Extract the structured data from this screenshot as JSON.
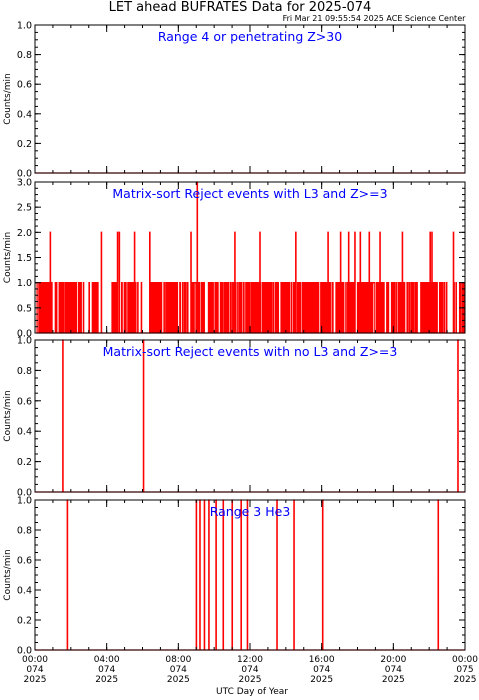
{
  "title": "LET ahead BUFRATES Data for 2025-074",
  "subtitle": "Fri Mar 21 09:55:54 2025 ACE Science Center",
  "xlabel": "UTC Day of Year",
  "colors": {
    "data": "#ff0000",
    "panel_label": "#0000ff",
    "axes": "#000000"
  },
  "chart_data": [
    {
      "type": "line",
      "label": "Range 4 or  penetrating Z>30",
      "ylabel": "Counts/min",
      "ylim": [
        0,
        1
      ],
      "yticks": [
        "0.0",
        "0.2",
        "0.4",
        "0.6",
        "0.8",
        "1.0"
      ],
      "x_hours": [
        0,
        24
      ],
      "values_note": "",
      "series": [
        {
          "values": []
        }
      ]
    },
    {
      "type": "line",
      "label": "Matrix-sort Reject events with L3 and Z>=3",
      "ylabel": "Counts/min",
      "ylim": [
        0,
        3
      ],
      "yticks": [
        "0.0",
        "0.5",
        "1.0",
        "1.5",
        "2.0",
        "2.5",
        "3.0"
      ],
      "x_hours": [
        0,
        24
      ],
      "series": [
        {
          "values": []
        }
      ]
    },
    {
      "type": "line",
      "label": "Matrix-sort Reject events with no L3 and Z>=3",
      "ylabel": "Counts/min",
      "ylim": [
        0,
        1
      ],
      "yticks": [
        "0.0",
        "0.2",
        "0.4",
        "0.6",
        "0.8",
        "1.0"
      ],
      "x_hours": [
        0,
        24
      ],
      "series": [
        {
          "values": []
        }
      ]
    },
    {
      "type": "line",
      "label": "Range 3 He3",
      "ylabel": "Counts/min",
      "ylim": [
        0,
        1
      ],
      "yticks": [
        "0.0",
        "0.2",
        "0.4",
        "0.6",
        "0.8",
        "1.0"
      ],
      "x_hours": [
        0,
        24
      ],
      "series": [
        {
          "values": []
        }
      ]
    }
  ],
  "spikes": {
    "panel2_level2_hours": [
      0.85,
      3.7,
      4.6,
      4.7,
      5.55,
      6.4,
      8.7,
      11.15,
      12.55,
      14.55,
      16.35,
      17.05,
      17.5,
      17.85,
      18.15,
      18.65,
      19.25,
      20.5,
      22.05,
      22.15,
      23.35
    ],
    "panel2_level3_hours": [
      9.05
    ],
    "panel3_level1_hours": [
      1.55,
      6.05,
      23.6
    ],
    "panel4_level1_hours": [
      1.8,
      9.0,
      9.2,
      9.45,
      9.7,
      10.1,
      10.5,
      11.0,
      11.5,
      11.85,
      13.5,
      14.45,
      16.05,
      22.5
    ]
  },
  "xticks": [
    {
      "time": "00:00",
      "doy": "074",
      "year": "2025"
    },
    {
      "time": "04:00",
      "doy": "074",
      "year": "2025"
    },
    {
      "time": "08:00",
      "doy": "074",
      "year": "2025"
    },
    {
      "time": "12:00",
      "doy": "074",
      "year": "2025"
    },
    {
      "time": "16:00",
      "doy": "074",
      "year": "2025"
    },
    {
      "time": "20:00",
      "doy": "074",
      "year": "2025"
    },
    {
      "time": "00:00",
      "doy": "075",
      "year": "2025"
    }
  ]
}
